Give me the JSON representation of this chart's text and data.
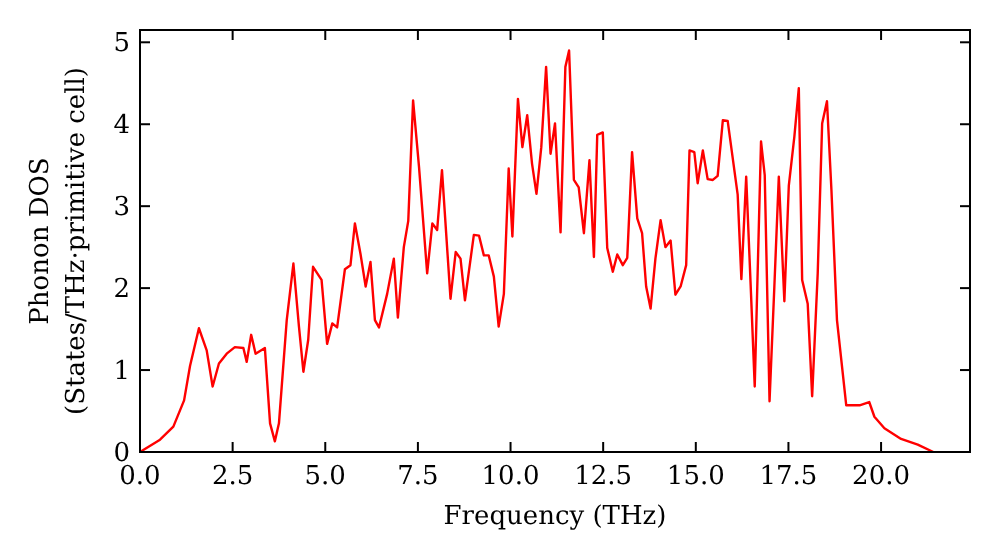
{
  "chart_data": {
    "type": "line",
    "xlabel": "Frequency (THz)",
    "ylabel": "Phonon DOS\n(States/THz·primitive cell)",
    "x": [
      0,
      0.54,
      0.9,
      1.19,
      1.35,
      1.59,
      1.8,
      1.96,
      2.13,
      2.34,
      2.56,
      2.79,
      2.88,
      3.0,
      3.12,
      3.37,
      3.51,
      3.64,
      3.75,
      3.96,
      4.14,
      4.29,
      4.41,
      4.54,
      4.67,
      4.9,
      5.05,
      5.19,
      5.32,
      5.53,
      5.68,
      5.8,
      5.95,
      6.09,
      6.22,
      6.34,
      6.45,
      6.67,
      6.85,
      6.96,
      7.12,
      7.24,
      7.37,
      7.53,
      7.75,
      7.89,
      8.02,
      8.15,
      8.38,
      8.52,
      8.65,
      8.77,
      9.01,
      9.15,
      9.28,
      9.41,
      9.55,
      9.68,
      9.82,
      9.95,
      10.05,
      10.2,
      10.32,
      10.45,
      10.58,
      10.7,
      10.83,
      10.96,
      11.08,
      11.2,
      11.35,
      11.48,
      11.58,
      11.71,
      11.84,
      11.98,
      12.13,
      12.25,
      12.34,
      12.49,
      12.61,
      12.76,
      12.88,
      13.03,
      13.15,
      13.28,
      13.42,
      13.55,
      13.66,
      13.78,
      13.91,
      14.05,
      14.18,
      14.32,
      14.45,
      14.59,
      14.74,
      14.83,
      14.96,
      15.05,
      15.19,
      15.32,
      15.46,
      15.59,
      15.73,
      15.86,
      16.13,
      16.23,
      16.36,
      16.49,
      16.59,
      16.76,
      16.86,
      16.99,
      17.12,
      17.24,
      17.39,
      17.51,
      17.66,
      17.78,
      17.87,
      18.02,
      18.14,
      18.29,
      18.41,
      18.54,
      18.66,
      18.81,
      19.06,
      19.42,
      19.68,
      19.82,
      20.09,
      20.54,
      20.99,
      21.41
    ],
    "series": [
      {
        "color": "#ff0000",
        "values": [
          0,
          0.15,
          0.31,
          0.63,
          1.05,
          1.51,
          1.24,
          0.8,
          1.08,
          1.2,
          1.28,
          1.27,
          1.1,
          1.43,
          1.2,
          1.27,
          0.35,
          0.13,
          0.35,
          1.61,
          2.3,
          1.53,
          0.98,
          1.37,
          2.26,
          2.1,
          1.32,
          1.57,
          1.52,
          2.23,
          2.28,
          2.79,
          2.42,
          2.02,
          2.32,
          1.61,
          1.52,
          1.93,
          2.36,
          1.64,
          2.5,
          2.82,
          4.29,
          3.48,
          2.18,
          2.79,
          2.71,
          3.44,
          1.87,
          2.44,
          2.36,
          1.85,
          2.65,
          2.64,
          2.4,
          2.4,
          2.14,
          1.53,
          1.93,
          3.46,
          2.63,
          4.31,
          3.72,
          4.11,
          3.52,
          3.15,
          3.72,
          4.7,
          3.64,
          4.01,
          2.68,
          4.7,
          4.9,
          3.32,
          3.23,
          2.67,
          3.56,
          2.38,
          3.87,
          3.9,
          2.49,
          2.2,
          2.41,
          2.28,
          2.37,
          3.66,
          2.85,
          2.67,
          2.02,
          1.75,
          2.36,
          2.83,
          2.5,
          2.58,
          1.92,
          2.02,
          2.28,
          3.68,
          3.66,
          3.28,
          3.68,
          3.33,
          3.32,
          3.37,
          4.05,
          4.04,
          3.14,
          2.11,
          3.36,
          1.93,
          0.8,
          3.79,
          3.38,
          0.62,
          2.02,
          3.36,
          1.84,
          3.25,
          3.85,
          4.44,
          2.1,
          1.81,
          0.68,
          2.18,
          4.01,
          4.28,
          3.2,
          1.61,
          0.57,
          0.57,
          0.61,
          0.43,
          0.29,
          0.16,
          0.09,
          0
        ]
      }
    ],
    "xlim": [
      0,
      22.4
    ],
    "ylim": [
      0,
      5.15
    ],
    "xticks": [
      {
        "value": 0,
        "label": "0.0"
      },
      {
        "value": 2.5,
        "label": "2.5"
      },
      {
        "value": 5,
        "label": "5.0"
      },
      {
        "value": 7.5,
        "label": "7.5"
      },
      {
        "value": 10,
        "label": "10.0"
      },
      {
        "value": 12.5,
        "label": "12.5"
      },
      {
        "value": 15,
        "label": "15.0"
      },
      {
        "value": 17.5,
        "label": "17.5"
      },
      {
        "value": 20,
        "label": "20.0"
      }
    ],
    "yticks": [
      0,
      1,
      2,
      3,
      4,
      5
    ],
    "grid": false,
    "marker": "none",
    "line_style": "solid"
  }
}
